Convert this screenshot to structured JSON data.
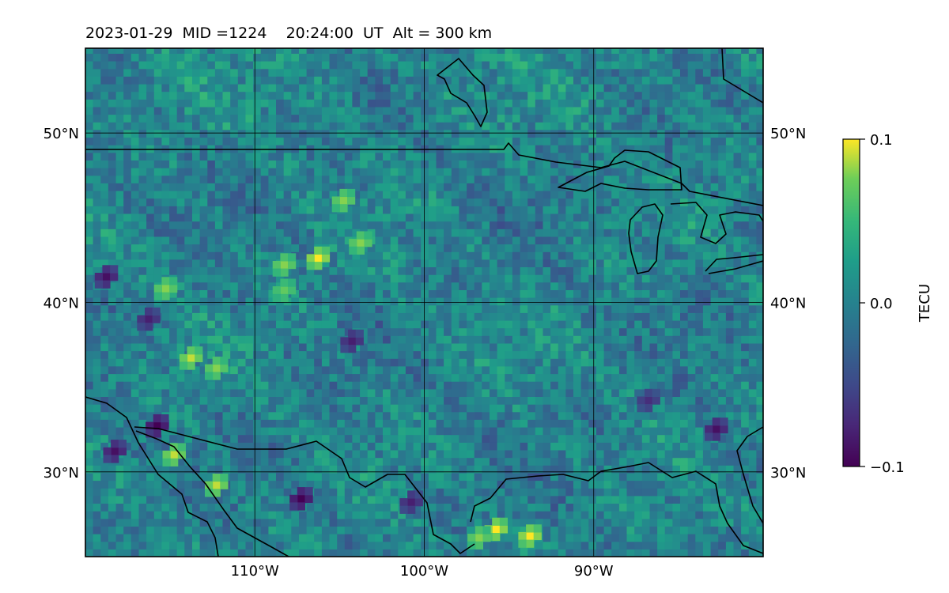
{
  "chart_data": {
    "type": "heatmap",
    "title": "2023-01-29  MID =1224    20:24:00  UT  Alt = 300 km",
    "map": {
      "lon_range": [
        -120,
        -80
      ],
      "lat_range": [
        25,
        55
      ],
      "gridlines": true,
      "coastlines": true,
      "country_borders": true
    },
    "x_ticks": [
      {
        "value": -110,
        "label": "110°W"
      },
      {
        "value": -100,
        "label": "100°W"
      },
      {
        "value": -90,
        "label": "90°W"
      }
    ],
    "y_ticks": [
      {
        "value": 50,
        "label": "50°N"
      },
      {
        "value": 40,
        "label": "40°N"
      },
      {
        "value": 30,
        "label": "30°N"
      }
    ],
    "colorbar": {
      "label": "TECU",
      "colormap": "viridis",
      "range": [
        -0.1,
        0.1
      ],
      "ticks": [
        {
          "value": 0.1,
          "label": "0.1"
        },
        {
          "value": 0.0,
          "label": "0.0"
        },
        {
          "value": -0.1,
          "label": "−0.1"
        }
      ],
      "placement": "right"
    },
    "hotspots": [
      {
        "lon": -106.5,
        "lat": 42.4,
        "value": 0.1
      },
      {
        "lon": -105.0,
        "lat": 45.8,
        "value": 0.08
      },
      {
        "lon": -104.0,
        "lat": 43.3,
        "value": 0.08
      },
      {
        "lon": -115.5,
        "lat": 40.6,
        "value": 0.08
      },
      {
        "lon": -114.0,
        "lat": 36.5,
        "value": 0.09
      },
      {
        "lon": -112.5,
        "lat": 35.9,
        "value": 0.08
      },
      {
        "lon": -115.0,
        "lat": 30.8,
        "value": 0.09
      },
      {
        "lon": -112.5,
        "lat": 29.0,
        "value": 0.09
      },
      {
        "lon": -108.5,
        "lat": 40.5,
        "value": 0.07
      },
      {
        "lon": -108.5,
        "lat": 42.0,
        "value": 0.08
      },
      {
        "lon": -96.0,
        "lat": 26.4,
        "value": 0.1
      },
      {
        "lon": -94.0,
        "lat": 26.0,
        "value": 0.1
      },
      {
        "lon": -97.0,
        "lat": 25.9,
        "value": 0.08
      }
    ],
    "coldspots": [
      {
        "lon": -116.0,
        "lat": 32.5,
        "value": -0.1
      },
      {
        "lon": -118.5,
        "lat": 31.0,
        "value": -0.09
      },
      {
        "lon": -107.5,
        "lat": 28.2,
        "value": -0.1
      },
      {
        "lon": -104.5,
        "lat": 37.5,
        "value": -0.08
      },
      {
        "lon": -119.0,
        "lat": 41.3,
        "value": -0.09
      },
      {
        "lon": -116.5,
        "lat": 38.8,
        "value": -0.08
      },
      {
        "lon": -101.0,
        "lat": 28.0,
        "value": -0.08
      },
      {
        "lon": -87.0,
        "lat": 34.0,
        "value": -0.07
      },
      {
        "lon": -83.0,
        "lat": 32.3,
        "value": -0.09
      }
    ]
  }
}
